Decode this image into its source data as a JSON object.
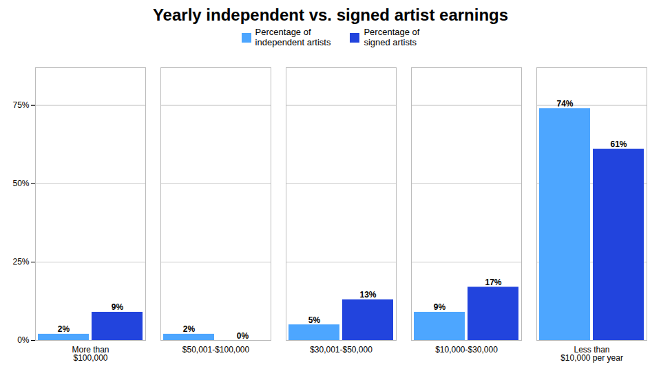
{
  "chart_data": {
    "type": "bar",
    "title": "Yearly independent vs. signed artist earnings",
    "categories": [
      "More than\n$100,000",
      "$50,001-$100,000",
      "$30,001-$50,000",
      "$10,000-$30,000",
      "Less than\n$10,000 per year"
    ],
    "series": [
      {
        "name": "Percentage of\nindependent artists",
        "color": "#4DA6FF",
        "values": [
          2,
          2,
          5,
          9,
          74
        ],
        "value_labels": [
          "2%",
          "2%",
          "5%",
          "9%",
          "74%"
        ]
      },
      {
        "name": "Percentage of\nsigned artists",
        "color": "#2244DD",
        "values": [
          9,
          0,
          13,
          17,
          61
        ],
        "value_labels": [
          "9%",
          "0%",
          "13%",
          "17%",
          "61%"
        ]
      }
    ],
    "ylim": [
      0,
      87
    ],
    "yticks": [
      {
        "value": 0,
        "label": "0%"
      },
      {
        "value": 25,
        "label": "25%"
      },
      {
        "value": 50,
        "label": "50%"
      },
      {
        "value": 75,
        "label": "75%"
      }
    ],
    "grid": true,
    "legend": "top",
    "data_labels": true
  }
}
